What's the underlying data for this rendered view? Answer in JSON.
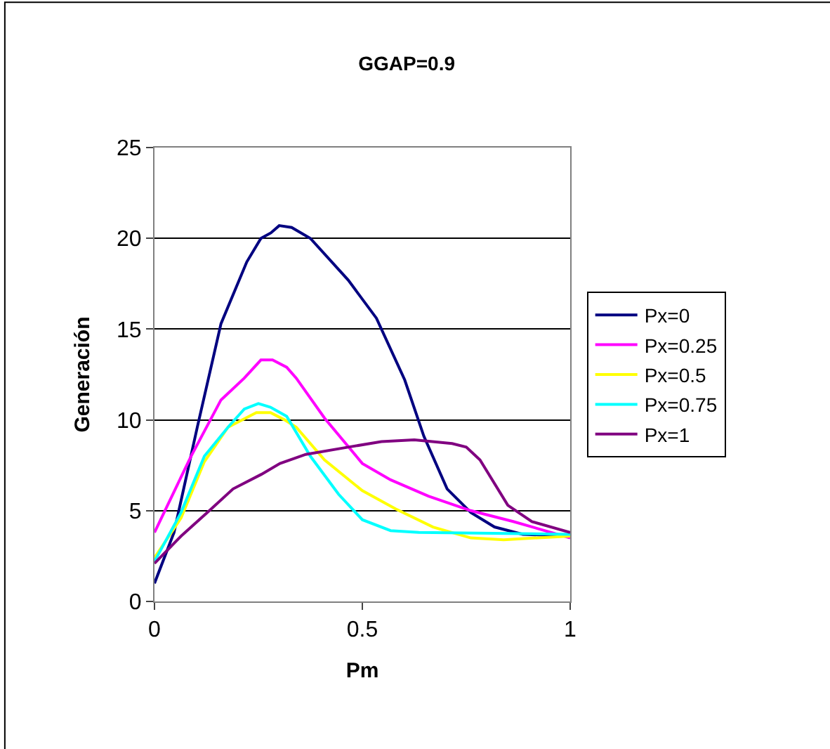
{
  "chart_data": {
    "type": "line",
    "title": "GGAP=0.9",
    "xlabel": "Pm",
    "ylabel": "Generación",
    "xlim": [
      0,
      1
    ],
    "xticks": [
      0,
      0.5,
      1
    ],
    "ylim": [
      0,
      25
    ],
    "yticks": [
      0,
      5,
      10,
      15,
      20,
      25
    ],
    "grid": "y",
    "legend": "right",
    "marker": "none",
    "line_style": "solid",
    "series": [
      {
        "name": "Px=0",
        "color": "#000080",
        "x": [
          0,
          0.047,
          0.103,
          0.16,
          0.222,
          0.256,
          0.28,
          0.3,
          0.33,
          0.375,
          0.466,
          0.534,
          0.602,
          0.648,
          0.704,
          0.761,
          0.818,
          0.886,
          1.0
        ],
        "values": [
          1.0,
          3.8,
          9.6,
          15.3,
          18.7,
          20.0,
          20.3,
          20.7,
          20.6,
          20.0,
          17.7,
          15.6,
          12.2,
          9.1,
          6.2,
          4.9,
          4.1,
          3.7,
          3.6
        ]
      },
      {
        "name": "Px=0.25",
        "color": "#ff00ff",
        "x": [
          0,
          0.088,
          0.16,
          0.216,
          0.256,
          0.284,
          0.318,
          0.341,
          0.409,
          0.5,
          0.568,
          0.659,
          0.761,
          0.863,
          1.0
        ],
        "values": [
          3.8,
          8.0,
          11.1,
          12.3,
          13.3,
          13.3,
          12.9,
          12.3,
          10.1,
          7.6,
          6.7,
          5.8,
          5.0,
          4.4,
          3.5
        ]
      },
      {
        "name": "Px=0.5",
        "color": "#ffff00",
        "x": [
          0,
          0.064,
          0.12,
          0.177,
          0.245,
          0.279,
          0.313,
          0.341,
          0.409,
          0.5,
          0.58,
          0.67,
          0.761,
          0.84,
          1.0
        ],
        "values": [
          2.4,
          4.6,
          7.7,
          9.6,
          10.4,
          10.4,
          10.0,
          9.6,
          7.8,
          6.1,
          5.1,
          4.1,
          3.5,
          3.4,
          3.6
        ]
      },
      {
        "name": "Px=0.75",
        "color": "#00ffff",
        "x": [
          0,
          0.064,
          0.12,
          0.177,
          0.216,
          0.25,
          0.279,
          0.318,
          0.375,
          0.443,
          0.5,
          0.568,
          0.636,
          1.0
        ],
        "values": [
          2.2,
          4.9,
          8.0,
          9.6,
          10.6,
          10.9,
          10.7,
          10.2,
          8.0,
          5.9,
          4.5,
          3.9,
          3.8,
          3.7
        ]
      },
      {
        "name": "Px=1",
        "color": "#800080",
        "x": [
          0,
          0.064,
          0.132,
          0.189,
          0.257,
          0.302,
          0.364,
          0.466,
          0.546,
          0.625,
          0.716,
          0.75,
          0.783,
          0.85,
          0.908,
          1.0
        ],
        "values": [
          2.1,
          3.6,
          5.0,
          6.2,
          7.0,
          7.6,
          8.1,
          8.5,
          8.8,
          8.9,
          8.7,
          8.5,
          7.8,
          5.3,
          4.4,
          3.8
        ]
      }
    ]
  }
}
